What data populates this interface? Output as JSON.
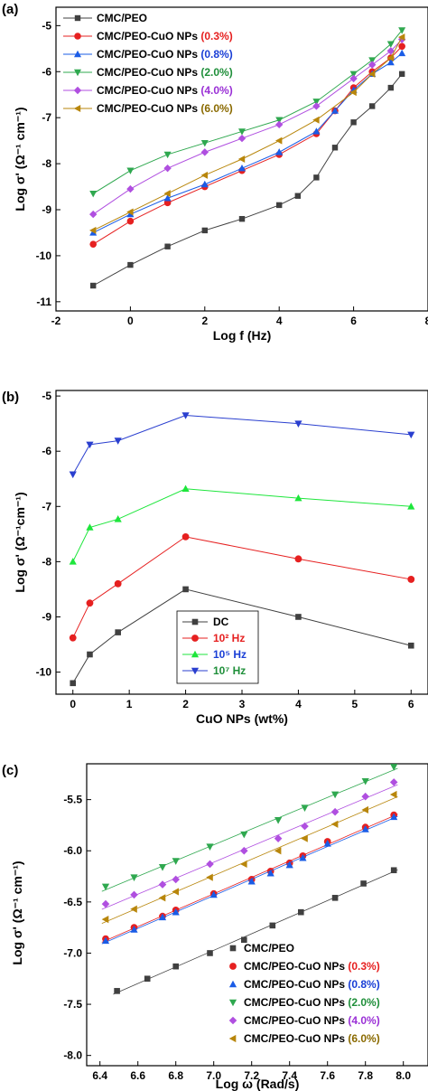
{
  "panels": [
    {
      "label": "(a)",
      "ylabel": "Log σ' (Ω⁻¹ cm⁻¹)",
      "xlabel": "Log f (Hz)",
      "legend": [
        {
          "main": "CMC/PEO",
          "pct": ""
        },
        {
          "main": "CMC/PEO-CuO NPs",
          "pct": "(0.3%)"
        },
        {
          "main": "CMC/PEO-CuO NPs",
          "pct": "(0.8%)"
        },
        {
          "main": "CMC/PEO-CuO NPs",
          "pct": "(2.0%)"
        },
        {
          "main": "CMC/PEO-CuO NPs",
          "pct": "(4.0%)"
        },
        {
          "main": "CMC/PEO-CuO NPs",
          "pct": "(6.0%)"
        }
      ]
    },
    {
      "label": "(b)",
      "ylabel": "Log σ' (Ω⁻¹cm⁻¹)",
      "xlabel": "CuO NPs (wt%)",
      "legend": [
        {
          "main": "DC"
        },
        {
          "main": "10² Hz"
        },
        {
          "main": "10⁵ Hz"
        },
        {
          "main": "10⁷ Hz"
        }
      ]
    },
    {
      "label": "(c)",
      "ylabel": "Log σ' (Ω⁻¹ cm⁻¹)",
      "xlabel": "Log ω (Rad/s)",
      "legend": [
        {
          "main": "CMC/PEO",
          "pct": ""
        },
        {
          "main": "CMC/PEO-CuO NPs",
          "pct": "(0.3%)"
        },
        {
          "main": "CMC/PEO-CuO NPs",
          "pct": "(0.8%)"
        },
        {
          "main": "CMC/PEO-CuO NPs",
          "pct": "(2.0%)"
        },
        {
          "main": "CMC/PEO-CuO NPs",
          "pct": "(4.0%)"
        },
        {
          "main": "CMC/PEO-CuO NPs",
          "pct": "(6.0%)"
        }
      ]
    }
  ],
  "chart_data": [
    {
      "type": "line",
      "title": "",
      "xlabel": "Log f (Hz)",
      "ylabel": "Log σ' (Ω⁻¹ cm⁻¹)",
      "xlim": [
        -2,
        8
      ],
      "ylim": [
        -11.2,
        -4.6
      ],
      "xticks": [
        -2,
        0,
        2,
        4,
        6,
        8
      ],
      "yticks": [
        -11,
        -10,
        -9,
        -8,
        -7,
        -6,
        -5
      ],
      "legend_position": "top-left",
      "series": [
        {
          "name": "CMC/PEO",
          "color": "#404040",
          "marker": "square",
          "x": [
            -1.0,
            0.0,
            1.0,
            2.0,
            3.0,
            4.0,
            4.5,
            5.0,
            5.5,
            6.0,
            6.5,
            7.0,
            7.3
          ],
          "y": [
            -10.65,
            -10.2,
            -9.8,
            -9.45,
            -9.2,
            -8.9,
            -8.7,
            -8.3,
            -7.65,
            -7.1,
            -6.75,
            -6.35,
            -6.05
          ]
        },
        {
          "name": "CMC/PEO-CuO NPs (0.3%)",
          "color": "#e62020",
          "marker": "circle",
          "x": [
            -1.0,
            0.0,
            1.0,
            2.0,
            3.0,
            4.0,
            5.0,
            5.5,
            6.0,
            6.5,
            7.0,
            7.3
          ],
          "y": [
            -9.75,
            -9.25,
            -8.85,
            -8.5,
            -8.15,
            -7.8,
            -7.35,
            -6.85,
            -6.35,
            -6.0,
            -5.7,
            -5.45
          ]
        },
        {
          "name": "CMC/PEO-CuO NPs (0.8%)",
          "color": "#1a5ce6",
          "marker": "triangle-up",
          "x": [
            -1.0,
            0.0,
            1.0,
            2.0,
            3.0,
            4.0,
            5.0,
            5.5,
            6.0,
            6.5,
            7.0,
            7.3
          ],
          "y": [
            -9.5,
            -9.1,
            -8.75,
            -8.45,
            -8.1,
            -7.75,
            -7.3,
            -6.85,
            -6.4,
            -6.05,
            -5.8,
            -5.6
          ]
        },
        {
          "name": "CMC/PEO-CuO NPs (2.0%)",
          "color": "#2fa84f",
          "marker": "triangle-down",
          "x": [
            -1.0,
            0.0,
            1.0,
            2.0,
            3.0,
            4.0,
            5.0,
            6.0,
            6.5,
            7.0,
            7.3
          ],
          "y": [
            -8.65,
            -8.15,
            -7.8,
            -7.55,
            -7.3,
            -7.05,
            -6.65,
            -6.05,
            -5.75,
            -5.4,
            -5.1
          ]
        },
        {
          "name": "CMC/PEO-CuO NPs (4.0%)",
          "color": "#b04fe0",
          "marker": "diamond",
          "x": [
            -1.0,
            0.0,
            1.0,
            2.0,
            3.0,
            4.0,
            5.0,
            6.0,
            6.5,
            7.0,
            7.3
          ],
          "y": [
            -9.1,
            -8.55,
            -8.1,
            -7.75,
            -7.45,
            -7.15,
            -6.75,
            -6.15,
            -5.85,
            -5.55,
            -5.3
          ]
        },
        {
          "name": "CMC/PEO-CuO NPs (6.0%)",
          "color": "#b8860b",
          "marker": "triangle-left",
          "x": [
            -1.0,
            0.0,
            1.0,
            2.0,
            3.0,
            4.0,
            5.0,
            6.0,
            6.5,
            7.0,
            7.3
          ],
          "y": [
            -9.45,
            -9.05,
            -8.65,
            -8.25,
            -7.9,
            -7.5,
            -7.05,
            -6.45,
            -6.05,
            -5.7,
            -5.25
          ]
        }
      ]
    },
    {
      "type": "line",
      "title": "",
      "xlabel": "CuO NPs (wt%)",
      "ylabel": "Log σ' (Ω⁻¹cm⁻¹)",
      "xlim": [
        -0.3,
        6.3
      ],
      "ylim": [
        -10.4,
        -4.9
      ],
      "xticks": [
        0,
        1,
        2,
        3,
        4,
        5,
        6
      ],
      "yticks": [
        -10,
        -9,
        -8,
        -7,
        -6,
        -5
      ],
      "legend_position": "bottom-center",
      "x": [
        0,
        0.3,
        0.8,
        2.0,
        4.0,
        6.0
      ],
      "series": [
        {
          "name": "DC",
          "color": "#404040",
          "marker": "square",
          "values": [
            -10.2,
            -9.68,
            -9.28,
            -8.5,
            -9.0,
            -9.52
          ]
        },
        {
          "name": "10² Hz",
          "color": "#e62020",
          "marker": "circle",
          "values": [
            -9.38,
            -8.75,
            -8.4,
            -7.55,
            -7.95,
            -8.32
          ]
        },
        {
          "name": "10⁵ Hz",
          "color": "#1ee63c",
          "marker": "triangle-up",
          "values": [
            -8.0,
            -7.38,
            -7.23,
            -6.68,
            -6.85,
            -7.0
          ]
        },
        {
          "name": "10⁷ Hz",
          "color": "#2a3fcf",
          "marker": "triangle-down",
          "values": [
            -6.42,
            -5.88,
            -5.81,
            -5.35,
            -5.5,
            -5.7
          ]
        }
      ]
    },
    {
      "type": "scatter",
      "title": "",
      "xlabel": "Log ω (Rad/s)",
      "ylabel": "Log σ' (Ω⁻¹ cm⁻¹)",
      "xlim": [
        6.33,
        8.13
      ],
      "ylim": [
        -8.1,
        -5.15
      ],
      "xticks": [
        6.4,
        6.6,
        6.8,
        7.0,
        7.2,
        7.4,
        7.6,
        7.8,
        8.0
      ],
      "yticks": [
        -8.0,
        -7.5,
        -7.0,
        -6.5,
        -6.0,
        -5.5
      ],
      "legend_position": "bottom-right",
      "fit_lines": true,
      "series": [
        {
          "name": "CMC/PEO",
          "color": "#404040",
          "marker": "square",
          "x": [
            6.49,
            6.65,
            6.8,
            6.98,
            7.16,
            7.31,
            7.46,
            7.64,
            7.79,
            7.95
          ],
          "y": [
            -7.37,
            -7.25,
            -7.13,
            -7.0,
            -6.87,
            -6.73,
            -6.6,
            -6.46,
            -6.32,
            -6.19
          ]
        },
        {
          "name": "CMC/PEO-CuO NPs (0.3%)",
          "color": "#e62020",
          "marker": "circle",
          "x": [
            6.43,
            6.58,
            6.73,
            6.8,
            7.0,
            7.2,
            7.3,
            7.4,
            7.47,
            7.6,
            7.8,
            7.95
          ],
          "y": [
            -6.86,
            -6.75,
            -6.64,
            -6.58,
            -6.42,
            -6.28,
            -6.2,
            -6.12,
            -6.05,
            -5.91,
            -5.77,
            -5.65
          ]
        },
        {
          "name": "CMC/PEO-CuO NPs (0.8%)",
          "color": "#1a5ce6",
          "marker": "triangle-up",
          "x": [
            6.43,
            6.58,
            6.73,
            6.8,
            7.0,
            7.2,
            7.3,
            7.4,
            7.47,
            7.6,
            7.8,
            7.95
          ],
          "y": [
            -6.88,
            -6.77,
            -6.65,
            -6.6,
            -6.43,
            -6.3,
            -6.22,
            -6.14,
            -6.07,
            -5.93,
            -5.79,
            -5.67
          ]
        },
        {
          "name": "CMC/PEO-CuO NPs (2.0%)",
          "color": "#2fa84f",
          "marker": "triangle-down",
          "x": [
            6.43,
            6.58,
            6.73,
            6.8,
            6.98,
            7.16,
            7.34,
            7.48,
            7.64,
            7.8,
            7.95
          ],
          "y": [
            -6.35,
            -6.26,
            -6.16,
            -6.1,
            -5.96,
            -5.84,
            -5.7,
            -5.58,
            -5.45,
            -5.32,
            -5.18
          ]
        },
        {
          "name": "CMC/PEO-CuO NPs (4.0%)",
          "color": "#b04fe0",
          "marker": "diamond",
          "x": [
            6.43,
            6.58,
            6.73,
            6.8,
            6.98,
            7.16,
            7.34,
            7.48,
            7.64,
            7.8,
            7.95
          ],
          "y": [
            -6.52,
            -6.43,
            -6.33,
            -6.28,
            -6.13,
            -6.0,
            -5.88,
            -5.76,
            -5.62,
            -5.47,
            -5.33
          ]
        },
        {
          "name": "CMC/PEO-CuO NPs (6.0%)",
          "color": "#b8860b",
          "marker": "triangle-left",
          "x": [
            6.43,
            6.58,
            6.73,
            6.8,
            6.98,
            7.16,
            7.34,
            7.48,
            7.64,
            7.8,
            7.95
          ],
          "y": [
            -6.67,
            -6.57,
            -6.46,
            -6.4,
            -6.26,
            -6.13,
            -6.0,
            -5.88,
            -5.74,
            -5.6,
            -5.45
          ]
        }
      ]
    }
  ]
}
